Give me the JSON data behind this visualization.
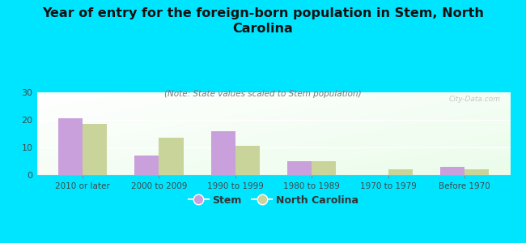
{
  "title": "Year of entry for the foreign-born population in Stem, North\nCarolina",
  "subtitle": "(Note: State values scaled to Stem population)",
  "categories": [
    "2010 or later",
    "2000 to 2009",
    "1990 to 1999",
    "1980 to 1989",
    "1970 to 1979",
    "Before 1970"
  ],
  "stem_values": [
    20.5,
    7.0,
    16.0,
    5.0,
    0,
    3.0
  ],
  "nc_values": [
    18.5,
    13.5,
    10.5,
    5.0,
    2.0,
    2.0
  ],
  "stem_color": "#c9a0dc",
  "nc_color": "#c8d49a",
  "background_color": "#00e5ff",
  "ylim": [
    0,
    30
  ],
  "yticks": [
    0,
    10,
    20,
    30
  ],
  "bar_width": 0.32,
  "title_fontsize": 11.5,
  "subtitle_fontsize": 7.5,
  "legend_labels": [
    "Stem",
    "North Carolina"
  ],
  "watermark": "City-Data.com"
}
